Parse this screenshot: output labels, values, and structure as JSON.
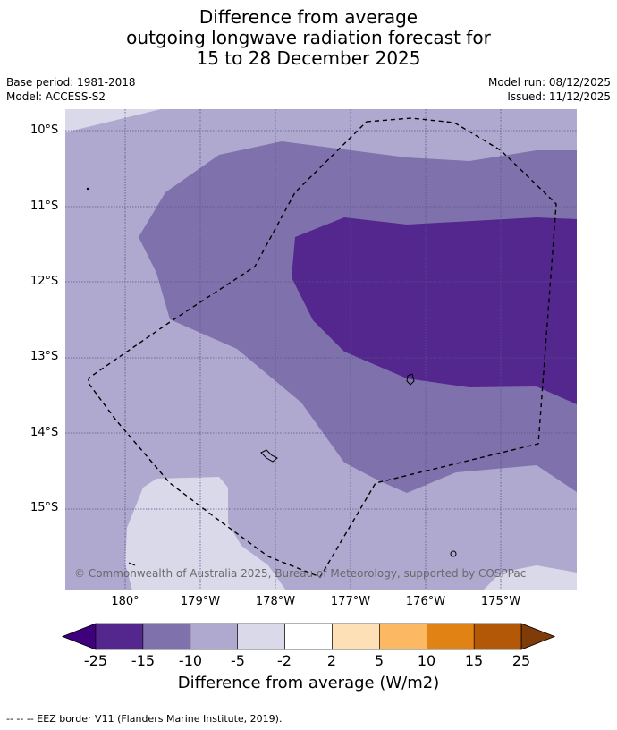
{
  "title": {
    "line1": "Difference from average",
    "line2": "outgoing longwave radiation forecast for",
    "line3": "15 to 28 December 2025"
  },
  "meta": {
    "base_period": "Base period: 1981-2018",
    "model": "Model: ACCESS-S2",
    "model_run": "Model run: 08/12/2025",
    "issued": "Issued: 11/12/2025"
  },
  "map": {
    "lat_labels": [
      "10°S",
      "11°S",
      "12°S",
      "13°S",
      "14°S",
      "15°S"
    ],
    "lon_labels": [
      "180°",
      "179°W",
      "178°W",
      "177°W",
      "176°W",
      "175°W"
    ],
    "copyright": "© Commonwealth of Australia 2025, Bureau of Meteorology, supported by COSPPac",
    "colors": {
      "minus25_minus15": "#54278f",
      "minus15_minus10": "#7f71ac",
      "minus10_minus5": "#afa9cf",
      "minus5_minus2": "#d9d9ea",
      "neutral": "#ffffff",
      "under_minus25": "#3f007d",
      "gridline": "#555588"
    }
  },
  "colorbar": {
    "ticks": [
      "-25",
      "-15",
      "-10",
      "-5",
      "-2",
      "2",
      "5",
      "10",
      "15",
      "25"
    ],
    "colors": [
      "#3f007d",
      "#54278f",
      "#7f71ac",
      "#afa9cf",
      "#d9d9ea",
      "#ffffff",
      "#fee0b6",
      "#fdb863",
      "#e08214",
      "#b35806",
      "#7f3b08"
    ],
    "label": "Difference from average (W/m2)"
  },
  "footnote": "--  --  -- EEZ border V11 (Flanders Marine Institute, 2019)."
}
